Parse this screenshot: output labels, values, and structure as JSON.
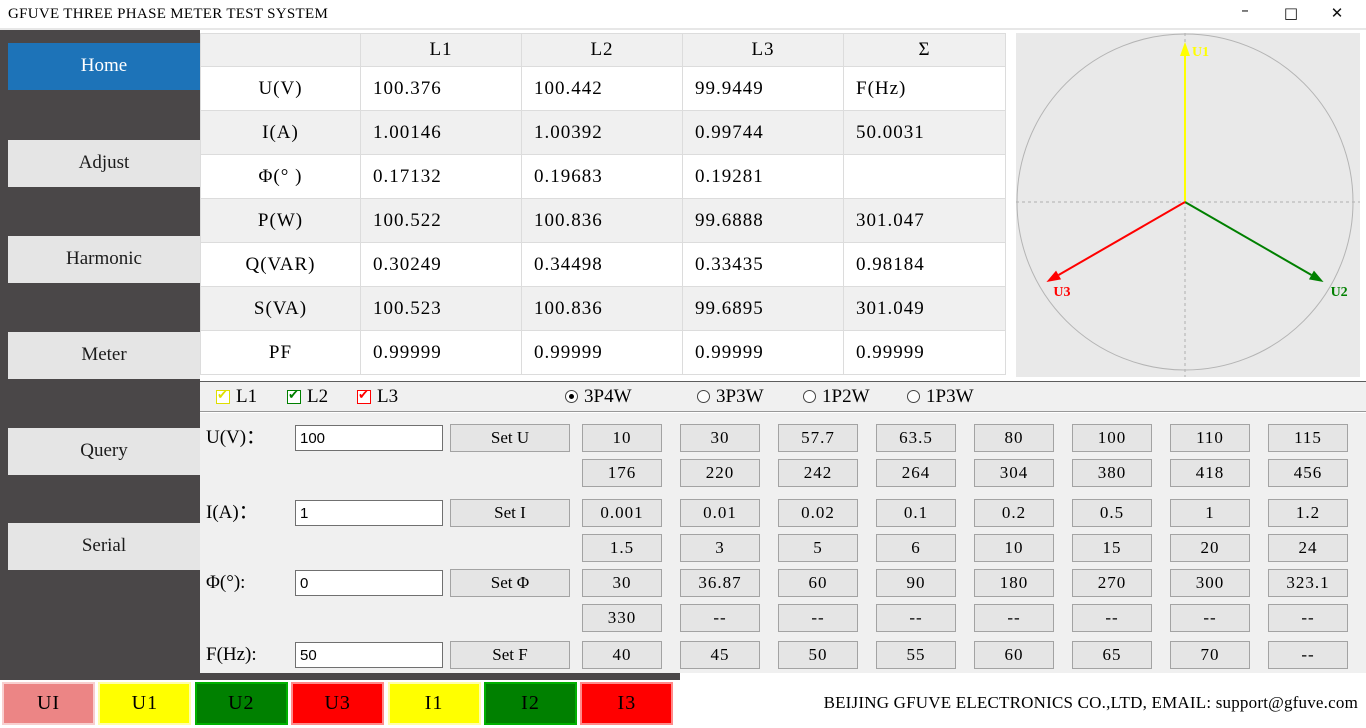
{
  "window": {
    "title": "GFUVE THREE PHASE METER TEST SYSTEM",
    "controls": {
      "minimize": "–",
      "maximize": "□",
      "close": "✕"
    }
  },
  "sidebar": {
    "items": [
      {
        "label": "Home",
        "active": true
      },
      {
        "label": "Adjust",
        "active": false
      },
      {
        "label": "Harmonic",
        "active": false
      },
      {
        "label": "Meter",
        "active": false
      },
      {
        "label": "Query",
        "active": false
      },
      {
        "label": "Serial",
        "active": false
      }
    ]
  },
  "measurements": {
    "columns": [
      "",
      "L1",
      "L2",
      "L3",
      "Σ"
    ],
    "rows": [
      {
        "label": "U(V)",
        "l1": "100.376",
        "l2": "100.442",
        "l3": "99.9449",
        "sum": "F(Hz)"
      },
      {
        "label": "I(A)",
        "l1": "1.00146",
        "l2": "1.00392",
        "l3": "0.99744",
        "sum": "50.0031"
      },
      {
        "label": "Φ(° )",
        "l1": "0.17132",
        "l2": "0.19683",
        "l3": "0.19281",
        "sum": ""
      },
      {
        "label": "P(W)",
        "l1": "100.522",
        "l2": "100.836",
        "l3": "99.6888",
        "sum": "301.047"
      },
      {
        "label": "Q(VAR)",
        "l1": "0.30249",
        "l2": "0.34498",
        "l3": "0.33435",
        "sum": "0.98184"
      },
      {
        "label": "S(VA)",
        "l1": "100.523",
        "l2": "100.836",
        "l3": "99.6895",
        "sum": "301.049"
      },
      {
        "label": "PF",
        "l1": "0.99999",
        "l2": "0.99999",
        "l3": "0.99999",
        "sum": "0.99999"
      }
    ]
  },
  "phasor": {
    "vectors": [
      {
        "label": "U1",
        "color": "#ffff00",
        "angle_deg": 90
      },
      {
        "label": "U2",
        "color": "#008000",
        "angle_deg": -30
      },
      {
        "label": "U3",
        "color": "#ff0000",
        "angle_deg": 210
      }
    ]
  },
  "phase_select": {
    "checkboxes": [
      {
        "label": "L1",
        "checked": true,
        "color": "#dede00"
      },
      {
        "label": "L2",
        "checked": true,
        "color": "#008000"
      },
      {
        "label": "L3",
        "checked": true,
        "color": "#ff0000"
      }
    ],
    "wiring_modes": [
      {
        "label": "3P4W",
        "selected": true
      },
      {
        "label": "3P3W",
        "selected": false
      },
      {
        "label": "1P2W",
        "selected": false
      },
      {
        "label": "1P3W",
        "selected": false
      }
    ]
  },
  "setters": [
    {
      "id": "u",
      "label": "U(V)：",
      "value": "100",
      "button_label": "Set U",
      "preset_rows": [
        [
          "10",
          "30",
          "57.7",
          "63.5",
          "80",
          "100",
          "110",
          "115"
        ],
        [
          "176",
          "220",
          "242",
          "264",
          "304",
          "380",
          "418",
          "456"
        ]
      ]
    },
    {
      "id": "i",
      "label": "I(A)：",
      "value": "1",
      "button_label": "Set I",
      "preset_rows": [
        [
          "0.001",
          "0.01",
          "0.02",
          "0.1",
          "0.2",
          "0.5",
          "1",
          "1.2"
        ],
        [
          "1.5",
          "3",
          "5",
          "6",
          "10",
          "15",
          "20",
          "24"
        ]
      ]
    },
    {
      "id": "phi",
      "label": "Φ(°):",
      "value": "0",
      "button_label": "Set Φ",
      "preset_rows": [
        [
          "30",
          "36.87",
          "60",
          "90",
          "180",
          "270",
          "300",
          "323.1"
        ],
        [
          "330",
          "--",
          "--",
          "--",
          "--",
          "--",
          "--",
          "--"
        ]
      ]
    },
    {
      "id": "f",
      "label": "F(Hz):",
      "value": "50",
      "button_label": "Set F",
      "preset_rows": [
        [
          "40",
          "45",
          "50",
          "55",
          "60",
          "65",
          "70",
          "--"
        ]
      ]
    }
  ],
  "bottom_bar": {
    "channels": [
      {
        "label": "UI",
        "bg": "#ec8585",
        "border": "#f8cfcf"
      },
      {
        "label": "U1",
        "bg": "#ffff00",
        "border": "#ffffa8"
      },
      {
        "label": "U2",
        "bg": "#008000",
        "border": "#00b000"
      },
      {
        "label": "U3",
        "bg": "#ff0000",
        "border": "#ff8a8a"
      },
      {
        "label": "I1",
        "bg": "#ffff00",
        "border": "#ffffa8"
      },
      {
        "label": "I2",
        "bg": "#008000",
        "border": "#00b000"
      },
      {
        "label": "I3",
        "bg": "#ff0000",
        "border": "#ff8a8a"
      }
    ],
    "company_info": "BEIJING GFUVE ELECTRONICS CO.,LTD,  EMAIL: support@gfuve.com"
  }
}
